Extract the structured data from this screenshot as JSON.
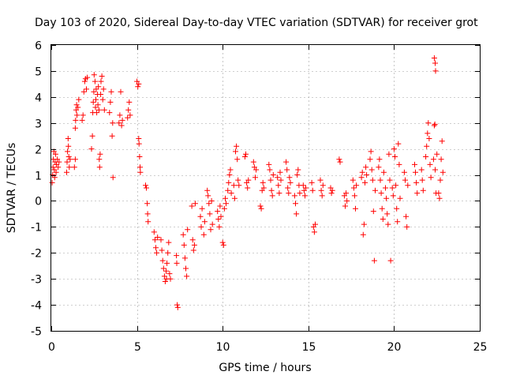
{
  "chart_data": {
    "type": "scatter",
    "title": "Day 103 of 2020, Sidereal Day-to-day VTEC variation (SDTVAR) for receiver grot",
    "xlabel": "GPS time / hours",
    "ylabel": "SDTVAR / TECUs",
    "xlim": [
      0,
      25
    ],
    "ylim": [
      -5,
      6
    ],
    "x_ticks": [
      0,
      5,
      10,
      15,
      20,
      25
    ],
    "x_tick_labels": [
      "0",
      "5",
      "10",
      "15",
      "20",
      "25"
    ],
    "y_ticks": [
      -5,
      -4,
      -3,
      -2,
      -1,
      0,
      1,
      2,
      3,
      4,
      5,
      6
    ],
    "y_tick_labels": [
      "-5",
      "-4",
      "-3",
      "-2",
      "-1",
      "0",
      "1",
      "2",
      "3",
      "4",
      "5",
      "6"
    ],
    "grid": true,
    "legend": "none",
    "marker": "plus",
    "series_color": "#ff0000",
    "series": [
      {
        "name": "SDTVAR",
        "points": [
          [
            0.05,
            0.7
          ],
          [
            0.08,
            1.0
          ],
          [
            0.1,
            1.3
          ],
          [
            0.12,
            1.6
          ],
          [
            0.15,
            1.9
          ],
          [
            0.18,
            1.2
          ],
          [
            0.2,
            0.9
          ],
          [
            0.22,
            1.5
          ],
          [
            0.25,
            1.8
          ],
          [
            0.28,
            1.1
          ],
          [
            0.3,
            1.4
          ],
          [
            0.35,
            1.6
          ],
          [
            0.4,
            1.3
          ],
          [
            0.45,
            1.5
          ],
          [
            0.9,
            1.1
          ],
          [
            0.92,
            1.5
          ],
          [
            0.95,
            1.9
          ],
          [
            0.98,
            2.4
          ],
          [
            1.0,
            2.1
          ],
          [
            1.02,
            1.7
          ],
          [
            1.05,
            1.3
          ],
          [
            1.1,
            1.6
          ],
          [
            1.35,
            1.3
          ],
          [
            1.4,
            1.6
          ],
          [
            1.4,
            2.8
          ],
          [
            1.42,
            3.1
          ],
          [
            1.45,
            3.5
          ],
          [
            1.48,
            3.7
          ],
          [
            1.5,
            3.3
          ],
          [
            1.55,
            3.6
          ],
          [
            1.6,
            3.9
          ],
          [
            1.8,
            3.1
          ],
          [
            1.85,
            3.3
          ],
          [
            1.9,
            4.2
          ],
          [
            1.95,
            4.6
          ],
          [
            2.0,
            4.7
          ],
          [
            2.05,
            4.3
          ],
          [
            2.1,
            4.75
          ],
          [
            2.35,
            2.0
          ],
          [
            2.4,
            2.5
          ],
          [
            2.42,
            3.4
          ],
          [
            2.45,
            3.8
          ],
          [
            2.48,
            4.2
          ],
          [
            2.5,
            4.85
          ],
          [
            2.55,
            4.6
          ],
          [
            2.58,
            3.6
          ],
          [
            2.6,
            3.9
          ],
          [
            2.62,
            4.3
          ],
          [
            2.65,
            3.4
          ],
          [
            2.7,
            4.1
          ],
          [
            2.72,
            3.7
          ],
          [
            2.75,
            4.4
          ],
          [
            2.78,
            3.5
          ],
          [
            2.8,
            1.6
          ],
          [
            2.82,
            1.3
          ],
          [
            2.85,
            1.8
          ],
          [
            2.88,
            4.1
          ],
          [
            2.9,
            4.6
          ],
          [
            2.95,
            4.8
          ],
          [
            3.0,
            3.9
          ],
          [
            3.05,
            4.3
          ],
          [
            3.1,
            3.5
          ],
          [
            3.4,
            3.4
          ],
          [
            3.45,
            3.8
          ],
          [
            3.5,
            4.2
          ],
          [
            3.55,
            2.5
          ],
          [
            3.58,
            3.0
          ],
          [
            3.6,
            0.9
          ],
          [
            3.95,
            3.0
          ],
          [
            4.0,
            3.3
          ],
          [
            4.05,
            4.2
          ],
          [
            4.1,
            2.9
          ],
          [
            4.15,
            3.1
          ],
          [
            4.45,
            3.2
          ],
          [
            4.5,
            3.5
          ],
          [
            4.55,
            3.8
          ],
          [
            4.6,
            3.3
          ],
          [
            5.0,
            4.6
          ],
          [
            5.05,
            4.4
          ],
          [
            5.1,
            4.5
          ],
          [
            5.1,
            2.4
          ],
          [
            5.12,
            2.2
          ],
          [
            5.15,
            1.7
          ],
          [
            5.18,
            1.3
          ],
          [
            5.2,
            1.1
          ],
          [
            5.5,
            0.6
          ],
          [
            5.55,
            0.5
          ],
          [
            5.6,
            -0.1
          ],
          [
            5.62,
            -0.5
          ],
          [
            5.65,
            -0.8
          ],
          [
            6.0,
            -1.2
          ],
          [
            6.05,
            -1.5
          ],
          [
            6.1,
            -1.8
          ],
          [
            6.15,
            -2.0
          ],
          [
            6.2,
            -1.4
          ],
          [
            6.4,
            -1.5
          ],
          [
            6.45,
            -1.9
          ],
          [
            6.5,
            -2.3
          ],
          [
            6.55,
            -2.6
          ],
          [
            6.6,
            -2.9
          ],
          [
            6.65,
            -3.1
          ],
          [
            6.7,
            -2.7
          ],
          [
            6.72,
            -3.0
          ],
          [
            6.75,
            -2.4
          ],
          [
            6.8,
            -2.0
          ],
          [
            6.85,
            -1.6
          ],
          [
            6.9,
            -2.8
          ],
          [
            6.95,
            -3.0
          ],
          [
            7.3,
            -2.1
          ],
          [
            7.32,
            -2.4
          ],
          [
            7.35,
            -4.0
          ],
          [
            7.38,
            -4.1
          ],
          [
            7.7,
            -1.3
          ],
          [
            7.75,
            -1.7
          ],
          [
            7.8,
            -2.2
          ],
          [
            7.85,
            -2.6
          ],
          [
            7.9,
            -2.9
          ],
          [
            7.95,
            -1.1
          ],
          [
            8.2,
            -0.2
          ],
          [
            8.25,
            -1.5
          ],
          [
            8.3,
            -1.9
          ],
          [
            8.35,
            -1.7
          ],
          [
            8.4,
            -0.1
          ],
          [
            8.7,
            -0.6
          ],
          [
            8.75,
            -1.0
          ],
          [
            8.8,
            -0.3
          ],
          [
            8.9,
            -1.3
          ],
          [
            8.95,
            -0.8
          ],
          [
            9.1,
            0.4
          ],
          [
            9.15,
            0.2
          ],
          [
            9.2,
            -0.1
          ],
          [
            9.25,
            -0.5
          ],
          [
            9.3,
            -1.1
          ],
          [
            9.35,
            0.0
          ],
          [
            9.4,
            -0.9
          ],
          [
            9.7,
            -0.4
          ],
          [
            9.75,
            -0.7
          ],
          [
            9.8,
            -1.0
          ],
          [
            9.85,
            -0.2
          ],
          [
            9.9,
            -0.6
          ],
          [
            10.0,
            -1.6
          ],
          [
            10.05,
            -1.7
          ],
          [
            10.1,
            -0.3
          ],
          [
            10.15,
            0.1
          ],
          [
            10.2,
            -0.1
          ],
          [
            10.3,
            0.4
          ],
          [
            10.35,
            0.7
          ],
          [
            10.4,
            1.0
          ],
          [
            10.45,
            1.2
          ],
          [
            10.5,
            0.3
          ],
          [
            10.65,
            0.6
          ],
          [
            10.7,
            0.1
          ],
          [
            10.75,
            1.9
          ],
          [
            10.8,
            2.1
          ],
          [
            10.85,
            1.6
          ],
          [
            10.9,
            0.8
          ],
          [
            10.95,
            0.6
          ],
          [
            11.3,
            1.7
          ],
          [
            11.35,
            1.8
          ],
          [
            11.4,
            0.7
          ],
          [
            11.45,
            0.5
          ],
          [
            11.5,
            0.8
          ],
          [
            11.8,
            1.5
          ],
          [
            11.85,
            1.3
          ],
          [
            11.9,
            0.9
          ],
          [
            11.95,
            1.2
          ],
          [
            12.2,
            -0.2
          ],
          [
            12.25,
            -0.3
          ],
          [
            12.3,
            0.4
          ],
          [
            12.35,
            0.7
          ],
          [
            12.4,
            0.5
          ],
          [
            12.7,
            1.4
          ],
          [
            12.75,
            1.2
          ],
          [
            12.8,
            0.8
          ],
          [
            12.85,
            0.4
          ],
          [
            12.9,
            0.2
          ],
          [
            12.95,
            1.0
          ],
          [
            13.2,
            0.9
          ],
          [
            13.25,
            0.6
          ],
          [
            13.3,
            0.3
          ],
          [
            13.35,
            1.1
          ],
          [
            13.4,
            0.8
          ],
          [
            13.7,
            1.5
          ],
          [
            13.75,
            1.2
          ],
          [
            13.8,
            0.5
          ],
          [
            13.85,
            0.3
          ],
          [
            13.9,
            0.9
          ],
          [
            13.95,
            0.7
          ],
          [
            14.2,
            0.2
          ],
          [
            14.25,
            -0.1
          ],
          [
            14.3,
            -0.5
          ],
          [
            14.35,
            1.0
          ],
          [
            14.4,
            1.2
          ],
          [
            14.45,
            0.6
          ],
          [
            14.5,
            0.3
          ],
          [
            14.7,
            0.6
          ],
          [
            14.75,
            0.4
          ],
          [
            14.8,
            0.2
          ],
          [
            14.85,
            0.5
          ],
          [
            15.2,
            0.7
          ],
          [
            15.25,
            0.4
          ],
          [
            15.3,
            -1.0
          ],
          [
            15.35,
            -1.2
          ],
          [
            15.4,
            -0.9
          ],
          [
            15.7,
            0.8
          ],
          [
            15.75,
            0.4
          ],
          [
            15.8,
            0.2
          ],
          [
            15.85,
            0.6
          ],
          [
            16.3,
            0.5
          ],
          [
            16.35,
            0.3
          ],
          [
            16.4,
            0.4
          ],
          [
            16.8,
            1.6
          ],
          [
            16.85,
            1.5
          ],
          [
            17.1,
            0.2
          ],
          [
            17.15,
            -0.2
          ],
          [
            17.2,
            0.3
          ],
          [
            17.25,
            0.0
          ],
          [
            17.6,
            0.8
          ],
          [
            17.65,
            0.5
          ],
          [
            17.7,
            0.2
          ],
          [
            17.75,
            -0.3
          ],
          [
            17.8,
            0.6
          ],
          [
            18.1,
            0.9
          ],
          [
            18.15,
            1.1
          ],
          [
            18.2,
            -1.3
          ],
          [
            18.25,
            -0.9
          ],
          [
            18.3,
            0.7
          ],
          [
            18.35,
            1.3
          ],
          [
            18.4,
            1.0
          ],
          [
            18.6,
            1.6
          ],
          [
            18.65,
            1.9
          ],
          [
            18.7,
            1.2
          ],
          [
            18.75,
            0.8
          ],
          [
            18.8,
            -0.4
          ],
          [
            18.85,
            -2.3
          ],
          [
            18.9,
            0.4
          ],
          [
            19.1,
            1.3
          ],
          [
            19.15,
            1.6
          ],
          [
            19.2,
            0.8
          ],
          [
            19.25,
            0.3
          ],
          [
            19.3,
            -0.3
          ],
          [
            19.35,
            -0.7
          ],
          [
            19.4,
            1.1
          ],
          [
            19.5,
            0.5
          ],
          [
            19.55,
            0.1
          ],
          [
            19.6,
            -0.5
          ],
          [
            19.65,
            -0.9
          ],
          [
            19.7,
            1.8
          ],
          [
            19.75,
            0.8
          ],
          [
            19.8,
            -2.3
          ],
          [
            19.9,
            0.5
          ],
          [
            19.95,
            0.2
          ],
          [
            20.0,
            2.0
          ],
          [
            20.05,
            1.7
          ],
          [
            20.1,
            0.6
          ],
          [
            20.15,
            -0.3
          ],
          [
            20.2,
            -0.8
          ],
          [
            20.25,
            2.2
          ],
          [
            20.3,
            1.4
          ],
          [
            20.35,
            0.1
          ],
          [
            20.6,
            1.1
          ],
          [
            20.65,
            0.8
          ],
          [
            20.7,
            -0.6
          ],
          [
            20.75,
            -1.0
          ],
          [
            20.8,
            0.6
          ],
          [
            21.2,
            1.4
          ],
          [
            21.25,
            1.1
          ],
          [
            21.3,
            0.7
          ],
          [
            21.35,
            0.3
          ],
          [
            21.6,
            1.2
          ],
          [
            21.65,
            0.8
          ],
          [
            21.7,
            0.4
          ],
          [
            21.85,
            1.7
          ],
          [
            21.9,
            2.1
          ],
          [
            21.95,
            2.6
          ],
          [
            22.0,
            3.0
          ],
          [
            22.05,
            2.4
          ],
          [
            22.1,
            1.4
          ],
          [
            22.15,
            0.9
          ],
          [
            22.3,
            1.6
          ],
          [
            22.35,
            2.9
          ],
          [
            22.38,
            2.95
          ],
          [
            22.4,
            1.2
          ],
          [
            22.45,
            0.3
          ],
          [
            22.5,
            1.8
          ],
          [
            22.35,
            5.5
          ],
          [
            22.4,
            5.3
          ],
          [
            22.42,
            5.0
          ],
          [
            22.6,
            0.3
          ],
          [
            22.65,
            0.1
          ],
          [
            22.7,
            0.8
          ],
          [
            22.75,
            1.6
          ],
          [
            22.8,
            2.3
          ],
          [
            22.85,
            1.1
          ]
        ]
      }
    ]
  }
}
